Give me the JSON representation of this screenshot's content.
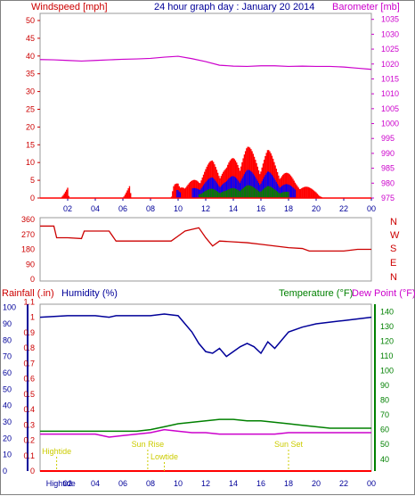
{
  "header": {
    "left_label": "Windspeed [mph]",
    "title": "24 hour graph day : January 20 2014",
    "right_label": "Barometer [mb]"
  },
  "compass": [
    "N",
    "W",
    "S",
    "E",
    "N"
  ],
  "lower_header": {
    "rainfall": "Rainfall (.in)",
    "humidity": "Humidity (%)",
    "temperature": "Temperature (°F)",
    "dewpoint": "Dew Point (°F)"
  },
  "colors": {
    "wind": "#ff0000",
    "gust_band": "#0000ff",
    "calm_band": "#008000",
    "barometer": "#cc00cc",
    "direction": "#cc0000",
    "humidity": "#000099",
    "temperature": "#008000",
    "dewpoint": "#cc00cc",
    "rain_axis": "#cc0000",
    "events": "#cccc00"
  },
  "chart_data": [
    {
      "type": "line",
      "panel": "wind_barometer",
      "x_ticks": [
        "02",
        "04",
        "06",
        "08",
        "10",
        "12",
        "14",
        "16",
        "18",
        "20",
        "22",
        "00"
      ],
      "y_left_ticks": [
        0,
        5,
        10,
        15,
        20,
        25,
        30,
        35,
        40,
        45,
        50
      ],
      "y_right_ticks": [
        975,
        980,
        985,
        990,
        995,
        1000,
        1005,
        1010,
        1015,
        1020,
        1025,
        1030,
        1035
      ],
      "ylim_left": [
        0,
        50
      ],
      "ylim_right": [
        975,
        1037
      ],
      "series": [
        {
          "name": "Windspeed [mph]",
          "axis": "left",
          "x": [
            0,
            1.5,
            2,
            2.1,
            2.2,
            3,
            4,
            5,
            6,
            6.5,
            6.6,
            6.7,
            7,
            8,
            9.5,
            9.7,
            10,
            10.5,
            11,
            11.5,
            12,
            12.5,
            13,
            13.5,
            14,
            14.5,
            15,
            15.5,
            16,
            16.5,
            17,
            17.5,
            18,
            18.5,
            19,
            19.5,
            20,
            20.5,
            24
          ],
          "y": [
            0,
            0,
            3,
            0,
            0,
            0,
            0,
            0,
            0,
            3.5,
            0,
            0,
            0,
            0,
            0,
            4,
            6,
            3,
            5,
            7,
            9,
            11,
            10,
            9,
            12,
            14,
            15,
            13,
            12,
            14,
            11,
            9,
            7,
            5,
            4,
            3,
            2,
            0,
            0
          ]
        },
        {
          "name": "Barometer [mb]",
          "axis": "right",
          "x": [
            0,
            1,
            2,
            3,
            4,
            5,
            6,
            7,
            8,
            9,
            10,
            11,
            12,
            13,
            14,
            15,
            16,
            17,
            18,
            19,
            20,
            21,
            22,
            23,
            24
          ],
          "y": [
            1021.5,
            1021.4,
            1021.2,
            1021.0,
            1021.2,
            1021.4,
            1021.6,
            1021.7,
            1021.9,
            1022.3,
            1022.6,
            1021.8,
            1020.8,
            1019.6,
            1019.3,
            1019.2,
            1019.4,
            1019.4,
            1019.2,
            1019.3,
            1019.2,
            1019.2,
            1019.0,
            1018.6,
            1018.2
          ]
        }
      ]
    },
    {
      "type": "line",
      "panel": "wind_direction",
      "y_ticks": [
        360,
        270,
        180,
        90,
        0
      ],
      "ylim": [
        0,
        360
      ],
      "series": [
        {
          "name": "Wind direction",
          "x": [
            0,
            1,
            1.2,
            2,
            3,
            3.2,
            4,
            5,
            5.5,
            6,
            7,
            8,
            9,
            9.5,
            10,
            10.5,
            11,
            11.5,
            12,
            12.5,
            13,
            14,
            15,
            16,
            17,
            18,
            19,
            19.5,
            20,
            21,
            22,
            23,
            24
          ],
          "y": [
            320,
            320,
            250,
            250,
            245,
            290,
            290,
            290,
            230,
            230,
            230,
            230,
            230,
            230,
            260,
            290,
            300,
            310,
            250,
            200,
            230,
            225,
            220,
            210,
            200,
            190,
            185,
            170,
            170,
            170,
            170,
            180,
            180
          ]
        }
      ]
    },
    {
      "type": "line",
      "panel": "humidity_temperature",
      "y_left_ticks": [
        0,
        10,
        20,
        30,
        40,
        50,
        60,
        70,
        80,
        90,
        100
      ],
      "y_rain_ticks": [
        0,
        0.1,
        0.2,
        0.3,
        0.4,
        0.5,
        0.6,
        0.7,
        0.8,
        0.9,
        1,
        1.1
      ],
      "y_right_ticks": [
        40,
        50,
        60,
        70,
        80,
        90,
        100,
        110,
        120,
        130,
        140
      ],
      "ylim_left": [
        0,
        102
      ],
      "ylim_right": [
        32,
        145
      ],
      "events": [
        "Hightide",
        "Sun Rise",
        "Lowtide",
        "Sun Set",
        "Hightide"
      ],
      "series": [
        {
          "name": "Humidity (%)",
          "axis": "left",
          "x": [
            0,
            2,
            4,
            5,
            5.5,
            6,
            8,
            9,
            10,
            10.5,
            11,
            11.5,
            12,
            12.5,
            13,
            13.5,
            14,
            14.5,
            15,
            15.5,
            16,
            16.5,
            17,
            18,
            19,
            20,
            21,
            22,
            23,
            24
          ],
          "y": [
            94,
            95,
            95,
            94,
            95,
            95,
            95,
            96,
            95,
            90,
            85,
            78,
            73,
            72,
            75,
            70,
            73,
            76,
            78,
            76,
            72,
            79,
            75,
            85,
            88,
            90,
            91,
            92,
            93,
            94
          ]
        },
        {
          "name": "Temperature (°F)",
          "axis": "right",
          "x": [
            0,
            2,
            4,
            5,
            6,
            7,
            8,
            9,
            10,
            11,
            12,
            13,
            14,
            15,
            16,
            17,
            18,
            19,
            20,
            21,
            22,
            23,
            24
          ],
          "y": [
            59,
            59,
            59,
            59,
            59,
            59,
            60,
            62,
            64,
            65,
            66,
            67,
            67,
            66,
            66,
            65,
            64,
            63,
            62,
            61,
            61,
            61,
            61
          ]
        },
        {
          "name": "Dew Point (°F)",
          "axis": "right",
          "x": [
            0,
            2,
            4,
            5,
            6,
            7,
            8,
            9,
            10,
            11,
            12,
            13,
            14,
            15,
            16,
            17,
            18,
            19,
            20,
            21,
            22,
            23,
            24
          ],
          "y": [
            57,
            57,
            57,
            55,
            56,
            57,
            58,
            60,
            59,
            58,
            58,
            57,
            57,
            57,
            57,
            57,
            58,
            58,
            58,
            58,
            58,
            58,
            58
          ]
        }
      ]
    }
  ]
}
